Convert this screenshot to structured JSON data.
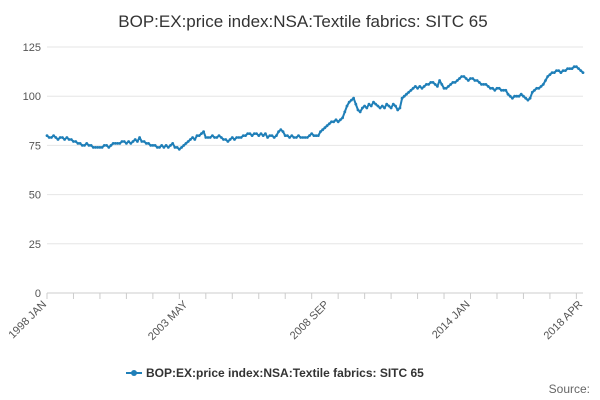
{
  "colors": {
    "series": "#1f7fb8",
    "grid": "#e6e6e6",
    "axis": "#cccccc"
  },
  "source_label": "Source:",
  "chart_data": {
    "type": "line",
    "title": "BOP:EX:price index:NSA:Textile fabrics: SITC 65",
    "xlabel": "",
    "ylabel": "",
    "ylim": [
      0,
      125
    ],
    "yticks": [
      0,
      25,
      50,
      75,
      100,
      125
    ],
    "x_start": "1998 JAN",
    "x_end": "2018 APR",
    "xtick_labels": [
      "1998 JAN",
      "2003 MAY",
      "2008 SEP",
      "2014 JAN",
      "2018 APR"
    ],
    "grid": true,
    "legend_position": "bottom",
    "series": [
      {
        "name": "BOP:EX:price index:NSA:Textile fabrics: SITC 65",
        "x_by_year": [
          "1998",
          "1999",
          "2000",
          "2001",
          "2002",
          "2003",
          "2004",
          "2005",
          "2006",
          "2007",
          "2008",
          "2009",
          "2010",
          "2011",
          "2012",
          "2013",
          "2014",
          "2015",
          "2016",
          "2017",
          "2018"
        ],
        "values_by_year": [
          [
            80,
            79,
            79,
            80,
            79,
            78,
            79,
            79,
            78,
            79,
            78,
            78
          ],
          [
            77,
            77,
            76,
            76,
            75,
            75,
            76,
            75,
            75,
            74,
            74,
            74
          ],
          [
            74,
            74,
            75,
            75,
            74,
            75,
            76,
            76,
            76,
            76,
            77,
            77
          ],
          [
            76,
            77,
            76,
            77,
            78,
            77,
            79,
            77,
            77,
            76,
            76,
            75
          ],
          [
            75,
            75,
            74,
            74,
            75,
            74,
            75,
            74,
            75,
            76,
            74,
            74
          ],
          [
            73,
            74,
            75,
            76,
            77,
            78,
            79,
            78,
            80,
            80,
            81,
            82
          ],
          [
            79,
            79,
            79,
            80,
            79,
            79,
            80,
            79,
            78,
            78,
            77,
            78
          ],
          [
            79,
            78,
            79,
            79,
            79,
            80,
            80,
            81,
            81,
            80,
            81,
            81
          ],
          [
            80,
            81,
            80,
            81,
            79,
            80,
            80,
            79,
            80,
            82,
            83,
            82
          ],
          [
            80,
            80,
            79,
            80,
            79,
            79,
            80,
            79,
            79,
            79,
            79,
            80
          ],
          [
            81,
            80,
            80,
            80,
            82,
            83,
            84,
            85,
            86,
            87,
            87,
            88
          ],
          [
            87,
            88,
            89,
            92,
            95,
            97,
            98,
            99,
            96,
            93,
            92,
            94
          ],
          [
            95,
            94,
            96,
            95,
            97,
            96,
            95,
            94,
            95,
            94,
            96,
            95
          ],
          [
            94,
            96,
            95,
            93,
            94,
            99,
            100,
            101,
            102,
            103,
            104,
            105
          ],
          [
            104,
            105,
            104,
            105,
            106,
            106,
            107,
            107,
            106,
            105,
            108,
            106
          ],
          [
            104,
            104,
            105,
            106,
            107,
            107,
            108,
            109,
            110,
            110,
            109,
            108
          ],
          [
            109,
            109,
            108,
            108,
            107,
            106,
            106,
            106,
            105,
            104,
            104,
            103
          ],
          [
            104,
            104,
            103,
            103,
            103,
            101,
            100,
            99,
            100,
            100,
            100,
            101
          ],
          [
            100,
            99,
            98,
            99,
            102,
            103,
            104,
            104,
            105,
            106,
            108,
            110
          ],
          [
            111,
            112,
            112,
            113,
            113,
            112,
            113,
            113,
            114,
            114,
            114,
            115
          ],
          [
            115,
            114,
            113,
            112
          ]
        ]
      }
    ]
  }
}
